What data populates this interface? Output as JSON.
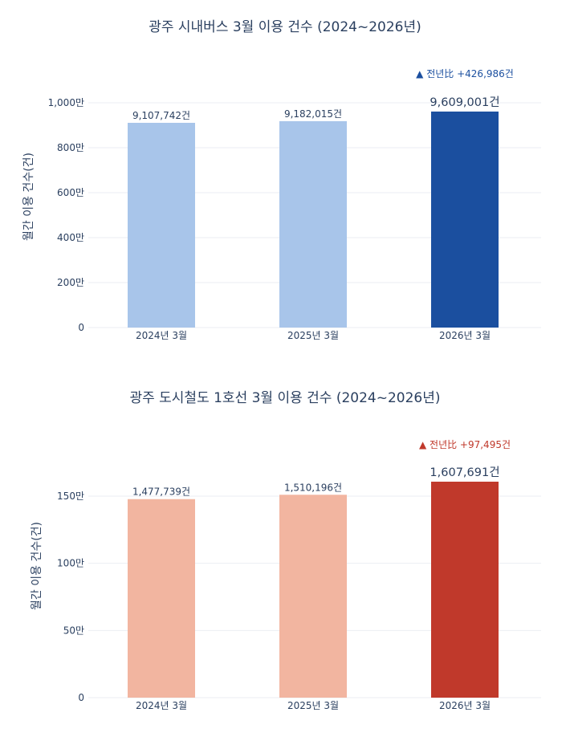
{
  "chart_data": [
    {
      "type": "bar",
      "title": "광주 시내버스 3월 이용 건수 (2024~2026년)",
      "ylabel": "월간 이용 건수(건)",
      "xlabel": "",
      "categories": [
        "2024년 3월",
        "2025년 3월",
        "2026년 3월"
      ],
      "values": [
        9107742,
        9182015,
        9609001
      ],
      "data_labels": [
        "9,107,742건",
        "9,182,015건",
        "9,609,001건"
      ],
      "colors": [
        "#a8c5ea",
        "#a8c5ea",
        "#1b4f9f"
      ],
      "yticks": [
        0,
        2000000,
        4000000,
        6000000,
        8000000,
        10000000
      ],
      "ytick_labels": [
        "0",
        "200만",
        "400만",
        "600만",
        "800만",
        "1,000만"
      ],
      "ylim": [
        0,
        10500000
      ],
      "grid": true,
      "annotation": {
        "text": "▲ 전년比 +426,986건",
        "color": "#1b4f9f"
      }
    },
    {
      "type": "bar",
      "title": "광주 도시철도 1호선 3월 이용 건수 (2024~2026년)",
      "ylabel": "월간 이용 건수(건)",
      "xlabel": "",
      "categories": [
        "2024년 3월",
        "2025년 3월",
        "2026년 3월"
      ],
      "values": [
        1477739,
        1510196,
        1607691
      ],
      "data_labels": [
        "1,477,739건",
        "1,510,196건",
        "1,607,691건"
      ],
      "colors": [
        "#f2b5a0",
        "#f2b5a0",
        "#c0392b"
      ],
      "yticks": [
        0,
        500000,
        1000000,
        1500000
      ],
      "ytick_labels": [
        "0",
        "50만",
        "100만",
        "150만"
      ],
      "ylim": [
        0,
        1700000
      ],
      "grid": true,
      "annotation": {
        "text": "▲ 전년比 +97,495건",
        "color": "#c0392b"
      }
    }
  ]
}
